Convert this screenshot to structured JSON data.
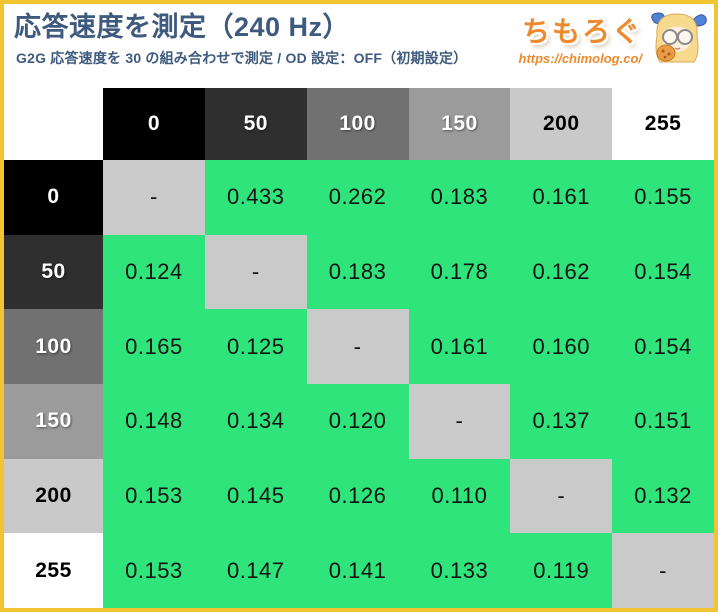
{
  "header": {
    "title": "応答速度を測定（240 Hz）",
    "subtitle": "G2G 応答速度を 30 の組み合わせで測定 / OD 設定：OFF（初期設定）"
  },
  "logo": {
    "site_name": "ちもろぐ",
    "url": "https://chimolog.co/",
    "mascot": "blonde-girl-with-glasses-holding-cookie"
  },
  "colors": {
    "frame_yellow": "#f1c431",
    "title_blue": "#3e5a7e",
    "logo_orange": "#ee8a2e",
    "cell_green": "#2fe57b",
    "diagonal_gray": "#cacaca",
    "gray_scale_bg": [
      "#000000",
      "#2f2f2f",
      "#717171",
      "#9b9b9b",
      "#c9c9c9",
      "#ffffff"
    ],
    "gray_scale_text": [
      "#ffffff",
      "#ffffff",
      "#ffffff",
      "#ffffff",
      "#000000",
      "#000000"
    ]
  },
  "chart_data": {
    "type": "table",
    "title": "応答速度を測定（240 Hz）",
    "subtitle": "G2G 応答速度を 30 の組み合わせで測定 / OD 設定：OFF（初期設定）",
    "description": "G2G response time matrix; from-gray-level rows vs to-gray-level columns",
    "col_headers": [
      "0",
      "50",
      "100",
      "150",
      "200",
      "255"
    ],
    "row_headers": [
      "0",
      "50",
      "100",
      "150",
      "200",
      "255"
    ],
    "diagonal_marker": "-",
    "cells": [
      [
        "-",
        "0.433",
        "0.262",
        "0.183",
        "0.161",
        "0.155"
      ],
      [
        "0.124",
        "-",
        "0.183",
        "0.178",
        "0.162",
        "0.154"
      ],
      [
        "0.165",
        "0.125",
        "-",
        "0.161",
        "0.160",
        "0.154"
      ],
      [
        "0.148",
        "0.134",
        "0.120",
        "-",
        "0.137",
        "0.151"
      ],
      [
        "0.153",
        "0.145",
        "0.126",
        "0.110",
        "-",
        "0.132"
      ],
      [
        "0.153",
        "0.147",
        "0.141",
        "0.133",
        "0.119",
        "-"
      ]
    ]
  }
}
